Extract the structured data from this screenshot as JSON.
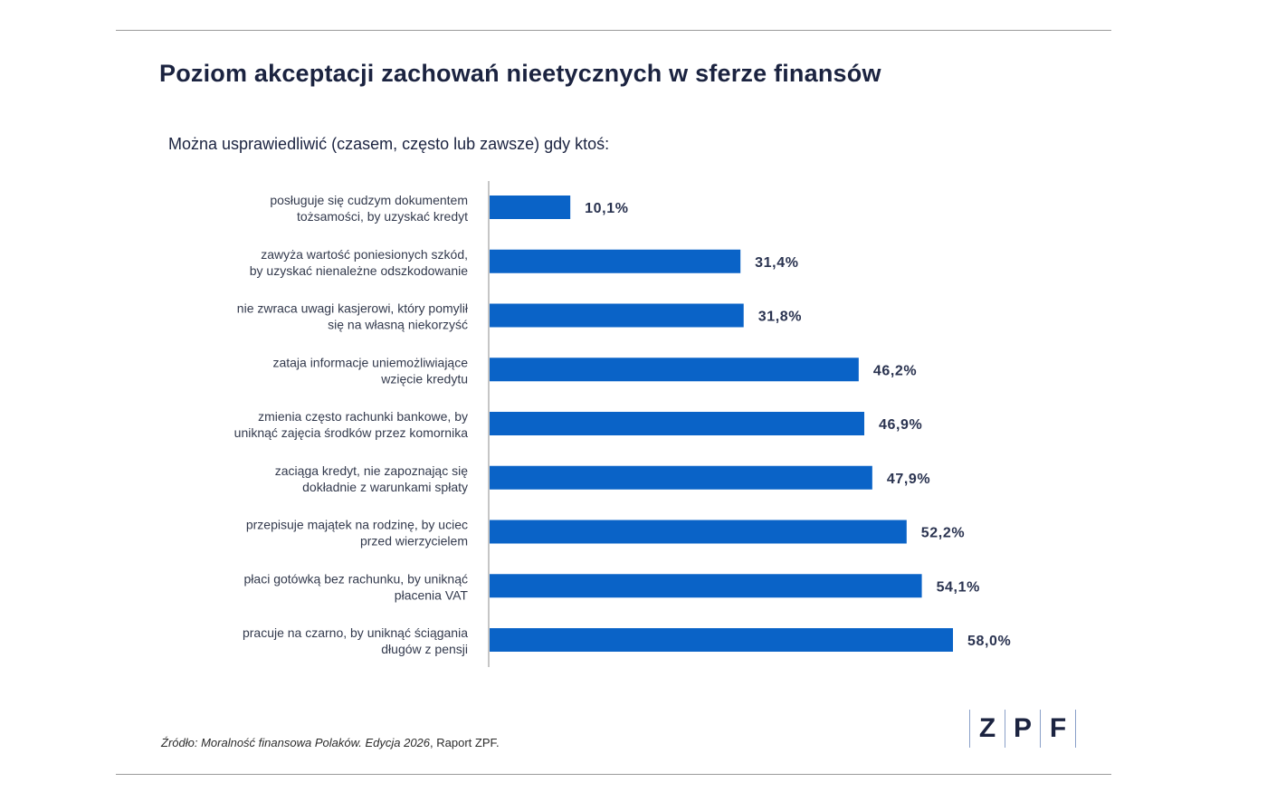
{
  "title": "Poziom akceptacji zachowań nieetycznych w sferze finansów",
  "subtitle": "Można usprawiedliwić (czasem, często lub zawsze) gdy ktoś:",
  "source_prefix": "Źródło:",
  "source_title": "Moralność finansowa Polaków. Edycja 2026",
  "source_suffix": ", Raport ZPF.",
  "logo": {
    "letters": [
      "Z",
      "P",
      "F"
    ]
  },
  "colors": {
    "bar": "#0a63c7",
    "text": "#1b2340",
    "axis": "#c6c6c6"
  },
  "chart_data": {
    "type": "bar",
    "orientation": "horizontal",
    "categories": [
      [
        "posługuje się cudzym dokumentem",
        "tożsamości, by uzyskać kredyt"
      ],
      [
        "zawyża wartość poniesionych szkód,",
        "by uzyskać nienależne odszkodowanie"
      ],
      [
        "nie zwraca uwagi kasjerowi, który pomylił",
        "się na własną niekorzyść"
      ],
      [
        "zataja informacje uniemożliwiające",
        "wzięcie kredytu"
      ],
      [
        "zmienia często rachunki bankowe, by",
        "uniknąć zajęcia środków przez komornika"
      ],
      [
        "zaciąga kredyt, nie zapoznając się",
        "dokładnie z warunkami spłaty"
      ],
      [
        "przepisuje majątek na rodzinę, by uciec",
        "przed wierzycielem"
      ],
      [
        "płaci gotówką bez rachunku, by uniknąć",
        "płacenia VAT"
      ],
      [
        "pracuje na czarno, by uniknąć ściągania",
        "długów z pensji"
      ]
    ],
    "values": [
      10.1,
      31.4,
      31.8,
      46.2,
      46.9,
      47.9,
      52.2,
      54.1,
      58.0
    ],
    "value_labels": [
      "10,1%",
      "31,4%",
      "31,8%",
      "46,2%",
      "46,9%",
      "47,9%",
      "52,2%",
      "54,1%",
      "58,0%"
    ],
    "title": "Poziom akceptacji zachowań nieetycznych w sferze finansów",
    "xlim": [
      0,
      100
    ],
    "grid": false
  }
}
